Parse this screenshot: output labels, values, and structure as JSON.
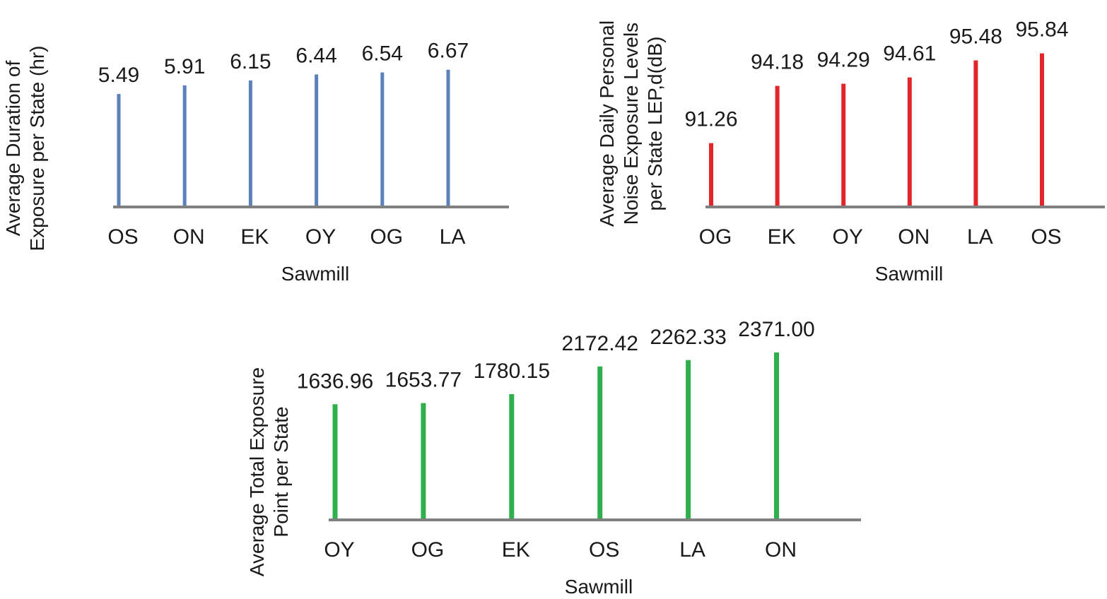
{
  "chart_data": [
    {
      "type": "bar",
      "id": "duration",
      "categories": [
        "OS",
        "ON",
        "EK",
        "OY",
        "OG",
        "LA"
      ],
      "values": [
        5.49,
        5.91,
        6.15,
        6.44,
        6.54,
        6.67
      ],
      "value_labels": [
        "5.49",
        "5.91",
        "6.15",
        "6.44",
        "6.54",
        "6.67"
      ],
      "xlabel": "Sawmill",
      "ylabel_lines": [
        "Average Duration of",
        "Exposure per State (hr)"
      ],
      "color": "#5a82b8",
      "ylim": [
        0,
        8
      ]
    },
    {
      "type": "bar",
      "id": "noise",
      "categories": [
        "OG",
        "EK",
        "OY",
        "ON",
        "LA",
        "OS"
      ],
      "values": [
        91.26,
        94.18,
        94.29,
        94.61,
        95.48,
        95.84
      ],
      "value_labels": [
        "91.26",
        "94.18",
        "94.29",
        "94.61",
        "95.48",
        "95.84"
      ],
      "xlabel": "Sawmill",
      "ylabel_lines": [
        "Average Daily Personal",
        "Noise Exposure Levels",
        "per State LEP,d(dB)"
      ],
      "color": "#e2262a",
      "ylim": [
        88,
        96.4
      ]
    },
    {
      "type": "bar",
      "id": "total-exposure",
      "categories": [
        "OY",
        "OG",
        "EK",
        "OS",
        "LA",
        "ON"
      ],
      "values": [
        1636.96,
        1653.77,
        1780.15,
        2172.42,
        2262.33,
        2371.0
      ],
      "value_labels": [
        "1636.96",
        "1653.77",
        "1780.15",
        "2172.42",
        "2262.33",
        "2371.00"
      ],
      "xlabel": "Sawmill",
      "ylabel_lines": [
        "Average Total Exposure",
        "Point per State"
      ],
      "color": "#2fb04c",
      "ylim": [
        0,
        2860
      ]
    }
  ]
}
